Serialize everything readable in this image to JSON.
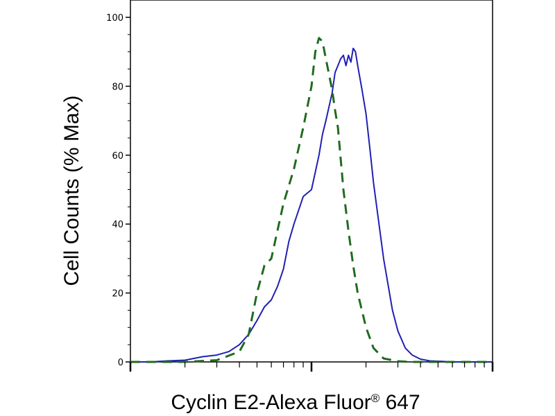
{
  "chart_data": {
    "type": "line",
    "title": "",
    "xlabel": "Cyclin E2-Alexa Fluor",
    "xlabel_sup": "®",
    "xlabel_suffix": " 647",
    "ylabel": "Cell Counts (% Max)",
    "xscale": "log",
    "xlim": [
      0.1,
      10
    ],
    "ylim": [
      0,
      105
    ],
    "yticks": [
      0,
      20,
      40,
      60,
      80,
      100
    ],
    "ytick_labels": [
      "0",
      "20",
      "40",
      "60",
      "80",
      "100"
    ],
    "grid": false,
    "legend": "none",
    "series": [
      {
        "style": "solid",
        "color": "#1f1fb4",
        "x": [
          0.1,
          0.13,
          0.16,
          0.2,
          0.25,
          0.3,
          0.35,
          0.4,
          0.45,
          0.5,
          0.55,
          0.6,
          0.65,
          0.7,
          0.75,
          0.8,
          0.9,
          1.0,
          1.1,
          1.15,
          1.2,
          1.3,
          1.35,
          1.4,
          1.45,
          1.5,
          1.55,
          1.6,
          1.65,
          1.7,
          1.75,
          1.8,
          1.9,
          2.0,
          2.1,
          2.2,
          2.5,
          2.8,
          3.0,
          3.3,
          3.6,
          4.0,
          4.5,
          5.0,
          6.0,
          7.0,
          8.0,
          10.0
        ],
        "y": [
          0,
          0,
          0.3,
          0.5,
          1.5,
          2,
          3,
          5,
          8,
          12,
          16,
          18,
          22,
          27,
          35,
          40,
          48,
          50,
          60,
          66,
          70,
          78,
          84,
          86,
          88,
          89,
          86,
          89,
          87,
          91,
          90,
          86,
          79,
          72,
          62,
          52,
          30,
          15,
          9,
          4,
          2,
          0.8,
          0.3,
          0.2,
          0,
          0,
          0,
          0
        ]
      },
      {
        "style": "dashed",
        "color": "#1f6b1f",
        "x": [
          0.1,
          0.15,
          0.2,
          0.3,
          0.4,
          0.45,
          0.5,
          0.55,
          0.6,
          0.7,
          0.8,
          0.9,
          1.0,
          1.05,
          1.1,
          1.15,
          1.2,
          1.3,
          1.35,
          1.4,
          1.5,
          1.6,
          1.7,
          1.8,
          2.0,
          2.2,
          2.5,
          3.0,
          3.5,
          4.0,
          5.0,
          7.0,
          10.0
        ],
        "y": [
          0,
          0,
          0,
          0.5,
          3,
          8,
          20,
          28,
          30,
          46,
          56,
          68,
          80,
          90,
          94,
          93,
          88,
          79,
          73,
          68,
          50,
          38,
          28,
          20,
          10,
          4,
          1,
          0.2,
          0,
          0,
          0,
          0,
          0
        ]
      }
    ]
  }
}
